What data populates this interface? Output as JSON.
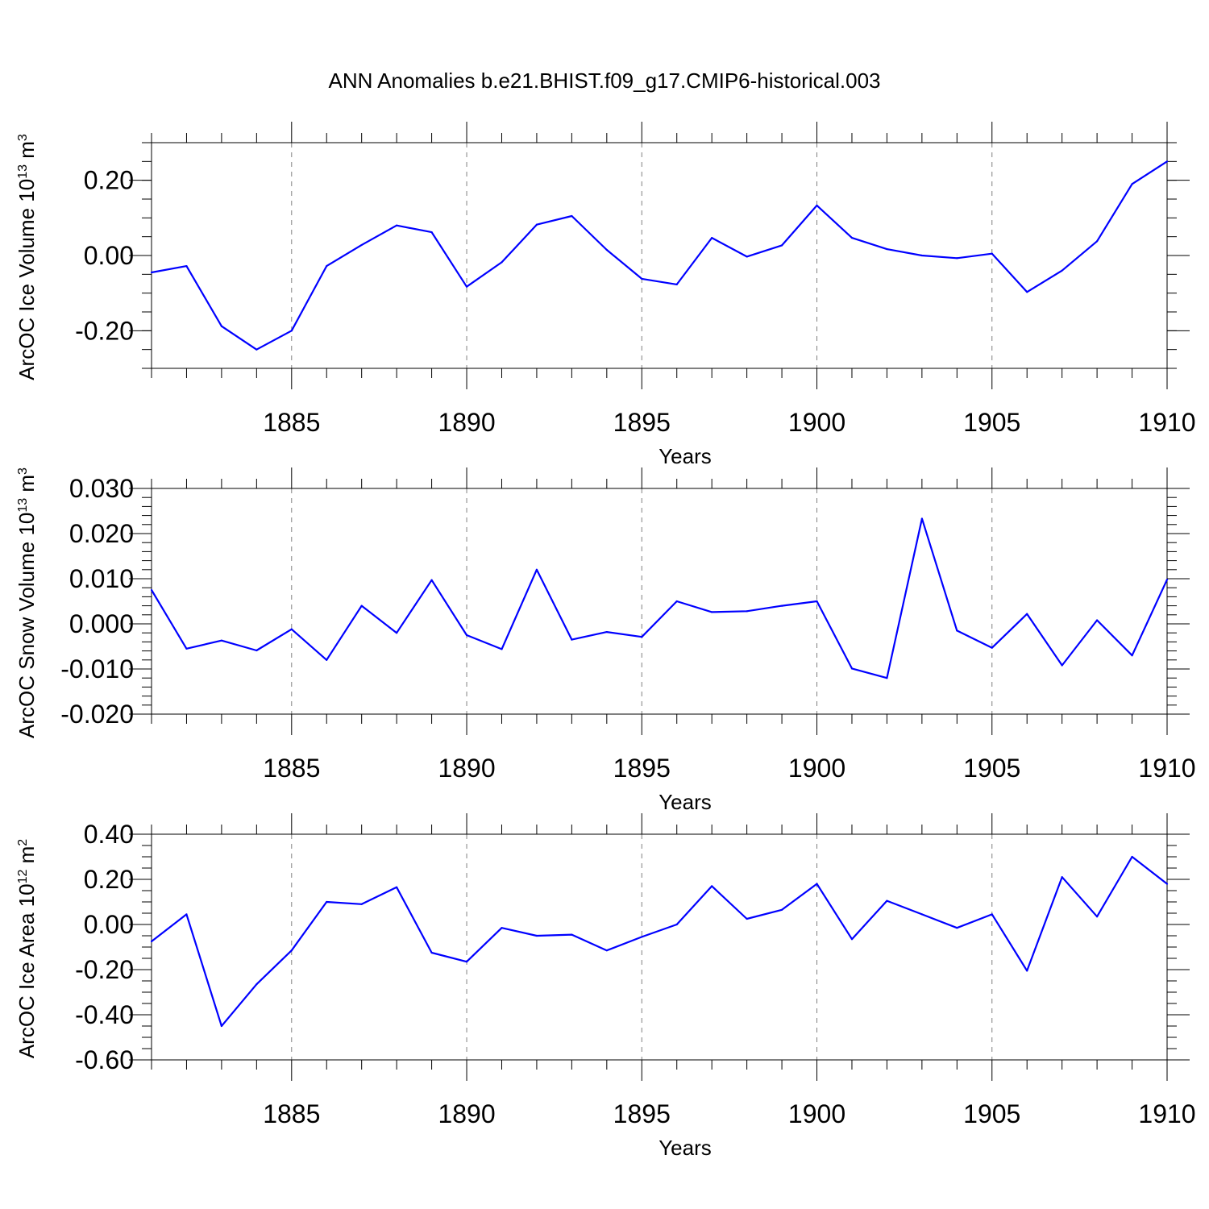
{
  "figure": {
    "title": "ANN Anomalies b.e21.BHIST.f09_g17.CMIP6-historical.003"
  },
  "colors": {
    "line": "#0000ff",
    "axis": "#000000",
    "grid": "#808080"
  },
  "chart_data": [
    {
      "type": "line",
      "ylabel": "ArcOC Ice Volume 10",
      "ylabel_sup": "13",
      "ylabel_unit": " m",
      "ylabel_unit_sup": "3",
      "xlabel": "Years",
      "xlim": [
        1881,
        1910
      ],
      "ylim": [
        -0.3,
        0.3
      ],
      "xticks": [
        1885,
        1890,
        1895,
        1900,
        1905,
        1910
      ],
      "yticks": [
        -0.2,
        0.0,
        0.2
      ],
      "yticklabels": [
        "-0.20",
        "0.00",
        "0.20"
      ],
      "y_minor_step": 0.05,
      "grid": "vertical dashed at major x ticks",
      "series": [
        {
          "x": [
            1881,
            1882,
            1883,
            1884,
            1885,
            1886,
            1887,
            1888,
            1889,
            1890,
            1891,
            1892,
            1893,
            1894,
            1895,
            1896,
            1897,
            1898,
            1899,
            1900,
            1901,
            1902,
            1903,
            1904,
            1905,
            1906,
            1907,
            1908,
            1909,
            1910
          ],
          "values": [
            -0.045,
            -0.028,
            -0.188,
            -0.25,
            -0.2,
            -0.028,
            0.028,
            0.08,
            0.062,
            -0.083,
            -0.018,
            0.082,
            0.105,
            0.015,
            -0.062,
            -0.077,
            0.047,
            -0.003,
            0.027,
            0.133,
            0.047,
            0.017,
            0.0,
            -0.007,
            0.005,
            -0.097,
            -0.04,
            0.038,
            0.19,
            0.25
          ]
        }
      ]
    },
    {
      "type": "line",
      "ylabel": "ArcOC Snow Volume 10",
      "ylabel_sup": "13",
      "ylabel_unit": " m",
      "ylabel_unit_sup": "3",
      "xlabel": "Years",
      "xlim": [
        1881,
        1910
      ],
      "ylim": [
        -0.02,
        0.03
      ],
      "xticks": [
        1885,
        1890,
        1895,
        1900,
        1905,
        1910
      ],
      "yticks": [
        -0.02,
        -0.01,
        0.0,
        0.01,
        0.02,
        0.03
      ],
      "yticklabels": [
        "-0.020",
        "-0.010",
        "0.000",
        "0.010",
        "0.020",
        "0.030"
      ],
      "y_minor_step": 0.002,
      "grid": "vertical dashed at major x ticks",
      "series": [
        {
          "x": [
            1881,
            1882,
            1883,
            1884,
            1885,
            1886,
            1887,
            1888,
            1889,
            1890,
            1891,
            1892,
            1893,
            1894,
            1895,
            1896,
            1897,
            1898,
            1899,
            1900,
            1901,
            1902,
            1903,
            1904,
            1905,
            1906,
            1907,
            1908,
            1909,
            1910
          ],
          "values": [
            0.0075,
            -0.0055,
            -0.0037,
            -0.0059,
            -0.0012,
            -0.008,
            0.004,
            -0.002,
            0.0097,
            -0.0025,
            -0.0056,
            0.012,
            -0.0035,
            -0.0018,
            -0.0029,
            0.005,
            0.0026,
            0.0028,
            0.004,
            0.005,
            -0.0099,
            -0.012,
            0.0233,
            -0.0015,
            -0.0053,
            0.0022,
            -0.0092,
            0.0008,
            -0.007,
            0.0098
          ]
        }
      ]
    },
    {
      "type": "line",
      "ylabel": "ArcOC Ice Area 10",
      "ylabel_sup": "12",
      "ylabel_unit": " m",
      "ylabel_unit_sup": "2",
      "xlabel": "Years",
      "xlim": [
        1881,
        1910
      ],
      "ylim": [
        -0.6,
        0.4
      ],
      "xticks": [
        1885,
        1890,
        1895,
        1900,
        1905,
        1910
      ],
      "yticks": [
        -0.6,
        -0.4,
        -0.2,
        0.0,
        0.2,
        0.4
      ],
      "yticklabels": [
        "-0.60",
        "-0.40",
        "-0.20",
        "0.00",
        "0.20",
        "0.40"
      ],
      "y_minor_step": 0.05,
      "grid": "vertical dashed at major x ticks",
      "series": [
        {
          "x": [
            1881,
            1882,
            1883,
            1884,
            1885,
            1886,
            1887,
            1888,
            1889,
            1890,
            1891,
            1892,
            1893,
            1894,
            1895,
            1896,
            1897,
            1898,
            1899,
            1900,
            1901,
            1902,
            1903,
            1904,
            1905,
            1906,
            1907,
            1908,
            1909,
            1910
          ],
          "values": [
            -0.075,
            0.045,
            -0.45,
            -0.265,
            -0.115,
            0.1,
            0.09,
            0.165,
            -0.125,
            -0.165,
            -0.015,
            -0.05,
            -0.045,
            -0.115,
            -0.055,
            0.0,
            0.17,
            0.025,
            0.065,
            0.18,
            -0.065,
            0.105,
            0.045,
            -0.015,
            0.045,
            -0.205,
            0.21,
            0.035,
            0.3,
            0.18
          ]
        }
      ]
    }
  ]
}
